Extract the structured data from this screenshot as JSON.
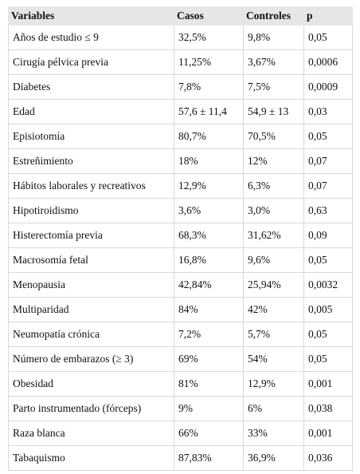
{
  "table": {
    "header": [
      "Variables",
      "Casos",
      "Controles",
      "p"
    ],
    "rows": [
      [
        "Años de estudio ≤ 9",
        "32,5%",
        "9,8%",
        "0,05"
      ],
      [
        "Cirugía pélvica previa",
        "11,25%",
        "3,67%",
        "0,0006"
      ],
      [
        "Diabetes",
        "7,8%",
        "7,5%",
        "0,0009"
      ],
      [
        "Edad",
        "57,6 ± 11,4",
        "54,9 ± 13",
        "0,03"
      ],
      [
        "Episiotomía",
        "80,7%",
        "70,5%",
        "0,05"
      ],
      [
        "Estreñimiento",
        "18%",
        "12%",
        "0,07"
      ],
      [
        "Hábitos laborales y recreativos",
        "12,9%",
        "6,3%",
        "0,07"
      ],
      [
        "Hipotiroidismo",
        "3,6%",
        "3,0%",
        "0,63"
      ],
      [
        "Histerectomía previa",
        "68,3%",
        "31,62%",
        "0,09"
      ],
      [
        "Macrosomía fetal",
        "16,8%",
        "9,6%",
        "0,05"
      ],
      [
        "Menopausia",
        "42,84%",
        "25,94%",
        "0,0032"
      ],
      [
        "Multiparidad",
        "84%",
        "42%",
        "0,005"
      ],
      [
        "Neumopatía crónica",
        "7,2%",
        "5,7%",
        "0,05"
      ],
      [
        "Número de embarazos (≥ 3)",
        "69%",
        "54%",
        "0,05"
      ],
      [
        "Obesidad",
        "81%",
        "12,9%",
        "0,001"
      ],
      [
        "Parto instrumentado (fórceps)",
        "9%",
        "6%",
        "0,038"
      ],
      [
        "Raza blanca",
        "66%",
        "33%",
        "0,001"
      ],
      [
        "Tabaquismo",
        "87,83%",
        "36,9%",
        "0,036"
      ]
    ]
  }
}
